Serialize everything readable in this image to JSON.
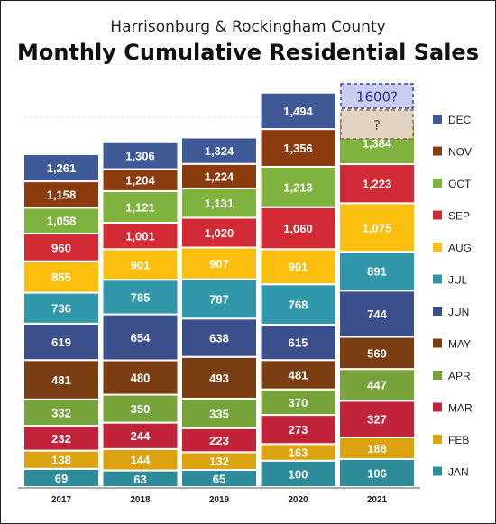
{
  "chart_data": {
    "type": "bar",
    "stacked": true,
    "subtitle": "Harrisonburg & Rockingham County",
    "title": "Monthly Cumulative Residential Sales",
    "categories": [
      "2017",
      "2018",
      "2019",
      "2020",
      "2021"
    ],
    "series": [
      {
        "name": "JAN",
        "color": "#2e8b9a",
        "values": [
          69,
          63,
          65,
          100,
          106
        ]
      },
      {
        "name": "FEB",
        "color": "#dba30f",
        "values": [
          138,
          144,
          132,
          163,
          188
        ]
      },
      {
        "name": "MAR",
        "color": "#c0233a",
        "values": [
          232,
          244,
          223,
          273,
          327
        ]
      },
      {
        "name": "APR",
        "color": "#77a33b",
        "values": [
          332,
          350,
          335,
          370,
          447
        ]
      },
      {
        "name": "MAY",
        "color": "#7a3e12",
        "values": [
          481,
          480,
          493,
          481,
          569
        ]
      },
      {
        "name": "JUN",
        "color": "#3b4f8c",
        "values": [
          619,
          654,
          638,
          615,
          744
        ]
      },
      {
        "name": "JUL",
        "color": "#3198ab",
        "values": [
          736,
          785,
          787,
          768,
          891
        ]
      },
      {
        "name": "AUG",
        "color": "#fbbf10",
        "values": [
          855,
          901,
          907,
          901,
          1075
        ]
      },
      {
        "name": "SEP",
        "color": "#d22b36",
        "values": [
          960,
          1001,
          1020,
          1060,
          1223
        ]
      },
      {
        "name": "OCT",
        "color": "#80b33d",
        "values": [
          1058,
          1121,
          1131,
          1213,
          1384
        ]
      },
      {
        "name": "NOV",
        "color": "#8a3c0e",
        "values": [
          1158,
          1204,
          1224,
          1356,
          null
        ]
      },
      {
        "name": "DEC",
        "color": "#3f5a96",
        "values": [
          1261,
          1306,
          1324,
          1494,
          null
        ]
      }
    ],
    "annotations": [
      {
        "category": "2021",
        "series": "NOV",
        "text": "?",
        "style": "dashed-brown"
      },
      {
        "category": "2021",
        "series": "DEC",
        "text": "1600?",
        "style": "dashed-blue"
      }
    ],
    "grid": true,
    "legend": "right"
  }
}
